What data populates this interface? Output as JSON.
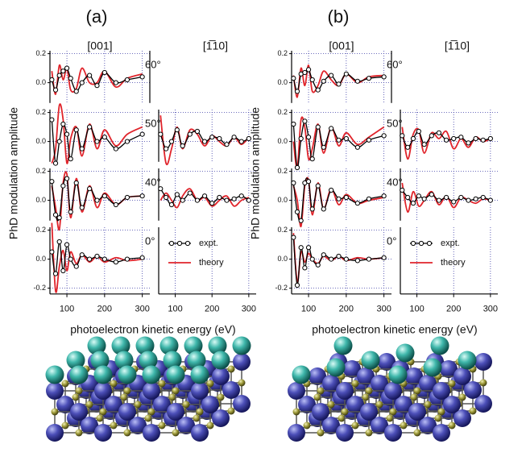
{
  "chart_data": [
    {
      "type": "line",
      "label": "(a)",
      "ylabel": "PhD modulation amplitude",
      "xlabel": "photoelectron kinetic energy (eV)",
      "grid": true,
      "xlim": [
        55,
        320
      ],
      "xticks": [
        100,
        200,
        300
      ],
      "series": [
        {
          "name": "expt.",
          "color": "#000000"
        },
        {
          "name": "theory",
          "color": "#e0242b"
        }
      ],
      "columns": [
        {
          "title": "[001]",
          "x": [
            60,
            70,
            80,
            90,
            100,
            110,
            125,
            140,
            160,
            180,
            200,
            230,
            260,
            300
          ]
        },
        {
          "title": "[1̅10]",
          "x": [
            60,
            75,
            90,
            105,
            120,
            140,
            160,
            180,
            200,
            220,
            240,
            260,
            280,
            300
          ]
        }
      ],
      "rows": [
        {
          "angle": "60°",
          "ylim": [
            -0.14,
            0.22
          ],
          "yticks": [
            {
              "value": 0,
              "label": "0.0"
            },
            0.2
          ],
          "left": {
            "expt": [
              0.02,
              -0.05,
              0.05,
              0.08,
              0.1,
              0.03,
              -0.06,
              0.0,
              0.05,
              -0.02,
              0.07,
              0.0,
              0.02,
              0.04
            ],
            "theory": [
              0.08,
              -0.08,
              0.12,
              0.02,
              0.1,
              -0.05,
              -0.04,
              0.1,
              0.0,
              0.0,
              0.08,
              -0.03,
              0.03,
              0.06
            ]
          }
        },
        {
          "angle": "50°",
          "ylim": [
            -0.14,
            0.22
          ],
          "yticks": [
            {
              "value": 0,
              "label": "0.0"
            },
            0.2
          ],
          "left": {
            "expt": [
              0.15,
              -0.15,
              0.0,
              0.12,
              0.05,
              -0.12,
              0.08,
              -0.05,
              0.1,
              0.0,
              0.03,
              -0.05,
              0.0,
              0.05
            ],
            "theory": [
              -0.15,
              -0.05,
              0.25,
              0.15,
              -0.15,
              0.02,
              0.1,
              -0.1,
              0.12,
              -0.05,
              0.08,
              -0.03,
              0.05,
              0.1
            ]
          },
          "right": {
            "expt": [
              0.05,
              -0.05,
              0.0,
              0.08,
              -0.03,
              0.05,
              0.07,
              0.0,
              0.03,
              0.02,
              -0.02,
              0.03,
              0.0,
              0.02
            ],
            "theory": [
              0.18,
              -0.15,
              -0.05,
              0.1,
              -0.05,
              0.08,
              0.05,
              -0.03,
              0.04,
              0.0,
              -0.03,
              0.03,
              -0.02,
              0.03
            ]
          }
        },
        {
          "angle": "40°",
          "ylim": [
            -0.14,
            0.22
          ],
          "yticks": [
            {
              "value": 0,
              "label": "0.0"
            },
            0.2
          ],
          "left": {
            "expt": [
              0.13,
              -0.1,
              -0.12,
              0.1,
              0.15,
              -0.08,
              0.12,
              -0.05,
              0.08,
              0.0,
              0.03,
              -0.03,
              0.02,
              0.03
            ],
            "theory": [
              0.1,
              -0.05,
              -0.2,
              0.12,
              0.18,
              -0.12,
              0.15,
              -0.08,
              0.1,
              -0.05,
              0.05,
              -0.03,
              0.02,
              0.03
            ]
          },
          "right": {
            "expt": [
              0.08,
              0.02,
              -0.03,
              0.04,
              0.0,
              0.05,
              0.0,
              0.03,
              -0.02,
              0.02,
              0.0,
              0.01,
              0.03,
              0.0
            ],
            "theory": [
              0.0,
              0.05,
              0.0,
              -0.05,
              0.03,
              0.08,
              0.0,
              0.02,
              -0.04,
              0.0,
              0.03,
              -0.04,
              0.0,
              0.02
            ]
          }
        },
        {
          "angle": "0°",
          "ylim": [
            -0.24,
            0.22
          ],
          "yticks": [
            -0.2,
            {
              "value": 0,
              "label": "0.0"
            },
            0.2
          ],
          "left": {
            "expt": [
              0.05,
              -0.1,
              0.12,
              -0.08,
              0.1,
              0.0,
              -0.05,
              0.03,
              0.0,
              0.02,
              0.0,
              -0.02,
              0.0,
              0.01
            ],
            "theory": [
              0.25,
              -0.22,
              -0.05,
              0.06,
              -0.08,
              0.05,
              -0.03,
              0.03,
              -0.02,
              0.02,
              -0.02,
              0.01,
              -0.01,
              0.0
            ]
          }
        }
      ]
    },
    {
      "type": "line",
      "label": "(b)",
      "ylabel": "PhD modulation amplitude",
      "xlabel": "photoelectron kinetic energy (eV)",
      "grid": true,
      "xlim": [
        55,
        320
      ],
      "xticks": [
        100,
        200,
        300
      ],
      "series": [
        {
          "name": "expt.",
          "color": "#000000"
        },
        {
          "name": "theory",
          "color": "#e0242b"
        }
      ],
      "columns": [
        {
          "title": "[001]",
          "x": [
            60,
            70,
            80,
            90,
            100,
            110,
            125,
            140,
            160,
            180,
            200,
            230,
            260,
            300
          ]
        },
        {
          "title": "[1̅10]",
          "x": [
            60,
            75,
            90,
            105,
            120,
            140,
            160,
            180,
            200,
            220,
            240,
            260,
            280,
            300
          ]
        }
      ],
      "rows": [
        {
          "angle": "60°",
          "ylim": [
            -0.14,
            0.22
          ],
          "yticks": [
            {
              "value": 0,
              "label": "0.0"
            },
            0.2
          ],
          "left": {
            "expt": [
              0.03,
              -0.06,
              0.06,
              0.07,
              0.09,
              0.02,
              -0.05,
              0.01,
              0.05,
              -0.01,
              0.06,
              0.01,
              0.03,
              0.04
            ],
            "theory": [
              0.05,
              -0.1,
              0.1,
              -0.02,
              0.12,
              -0.06,
              -0.02,
              0.08,
              0.02,
              -0.02,
              0.06,
              0.0,
              0.04,
              0.05
            ]
          }
        },
        {
          "angle": "50°",
          "ylim": [
            -0.14,
            0.22
          ],
          "yticks": [
            {
              "value": 0,
              "label": "0.0"
            },
            0.2
          ],
          "left": {
            "expt": [
              0.12,
              -0.18,
              0.02,
              0.14,
              0.03,
              -0.12,
              0.1,
              -0.04,
              0.09,
              0.01,
              0.02,
              -0.04,
              0.01,
              0.04
            ],
            "theory": [
              0.0,
              -0.18,
              0.15,
              0.1,
              -0.12,
              -0.05,
              0.12,
              -0.08,
              0.1,
              -0.03,
              0.06,
              -0.02,
              0.03,
              0.1
            ]
          },
          "right": {
            "expt": [
              0.04,
              -0.04,
              0.02,
              0.07,
              -0.02,
              0.04,
              0.06,
              0.01,
              0.02,
              0.03,
              -0.01,
              0.02,
              0.01,
              0.02
            ],
            "theory": [
              0.1,
              -0.12,
              0.05,
              0.08,
              -0.08,
              0.06,
              0.02,
              0.07,
              -0.05,
              0.02,
              -0.04,
              0.03,
              0.0,
              0.02
            ]
          }
        },
        {
          "angle": "40°",
          "ylim": [
            -0.14,
            0.22
          ],
          "yticks": [
            {
              "value": 0,
              "label": "0.0"
            },
            0.2
          ],
          "left": {
            "expt": [
              0.12,
              -0.08,
              -0.14,
              0.12,
              0.13,
              -0.06,
              0.1,
              -0.06,
              0.07,
              0.01,
              0.02,
              -0.02,
              0.01,
              0.03
            ],
            "theory": [
              0.1,
              0.0,
              -0.18,
              0.1,
              0.14,
              -0.1,
              0.12,
              -0.06,
              0.08,
              -0.03,
              0.04,
              -0.02,
              0.0,
              0.02
            ]
          },
          "right": {
            "expt": [
              0.07,
              0.02,
              -0.02,
              0.03,
              0.01,
              0.04,
              0.0,
              0.02,
              -0.01,
              0.02,
              0.0,
              0.01,
              0.02,
              0.0
            ],
            "theory": [
              0.12,
              -0.08,
              0.06,
              -0.04,
              0.0,
              0.06,
              -0.03,
              0.03,
              -0.05,
              0.02,
              0.0,
              -0.02,
              0.01,
              0.0
            ]
          }
        },
        {
          "angle": "0°",
          "ylim": [
            -0.24,
            0.22
          ],
          "yticks": [
            -0.2,
            {
              "value": 0,
              "label": "0.0"
            },
            0.2
          ],
          "left": {
            "expt": [
              0.15,
              -0.18,
              0.08,
              -0.06,
              0.08,
              0.0,
              -0.04,
              0.03,
              0.0,
              0.02,
              0.0,
              -0.01,
              0.0,
              0.01
            ],
            "theory": [
              0.18,
              -0.16,
              0.05,
              -0.02,
              0.04,
              0.0,
              -0.03,
              0.02,
              -0.01,
              0.02,
              -0.01,
              0.01,
              0.0,
              0.01
            ]
          }
        }
      ]
    }
  ]
}
